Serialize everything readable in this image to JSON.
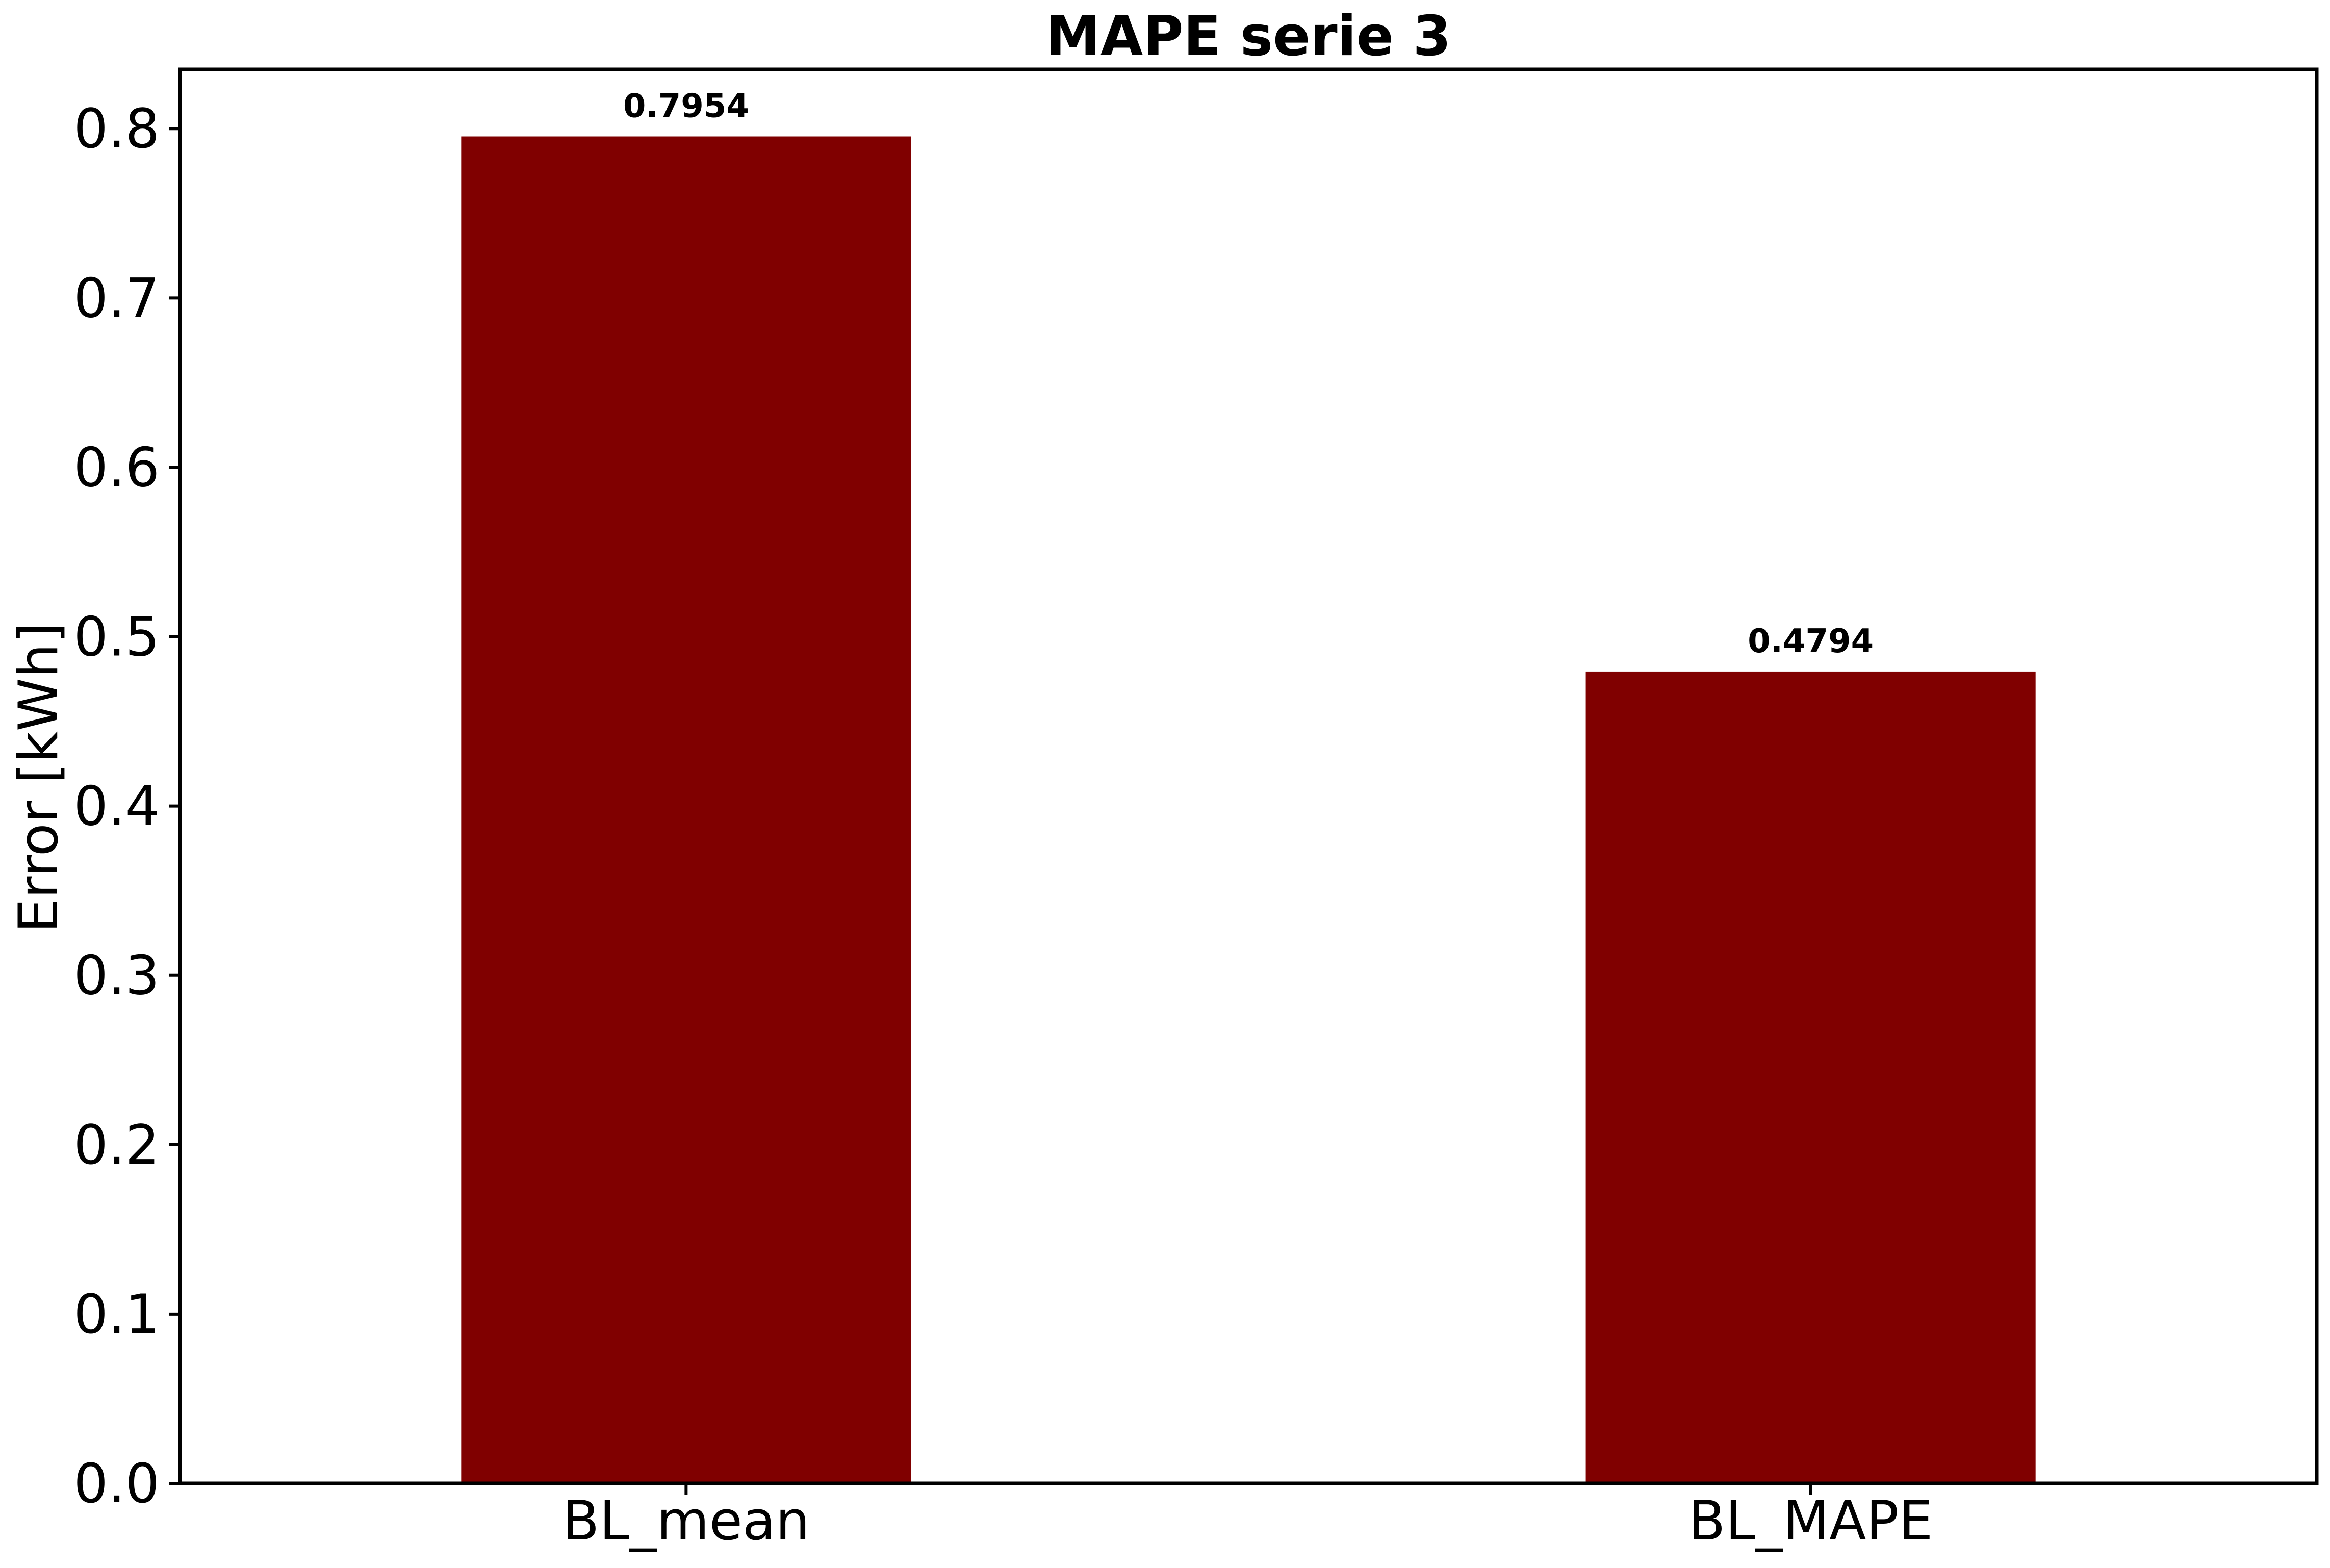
{
  "chart_data": {
    "type": "bar",
    "title": "MAPE serie 3",
    "xlabel": "",
    "ylabel": "Error [kWh]",
    "categories": [
      "BL_mean",
      "BL_MAPE"
    ],
    "values": [
      0.7954,
      0.4794
    ],
    "data_labels": [
      "0.7954",
      "0.4794"
    ],
    "ylim": [
      0,
      0.835
    ],
    "yticks": [
      0.0,
      0.1,
      0.2,
      0.3,
      0.4,
      0.5,
      0.6,
      0.7,
      0.8
    ],
    "ytick_labels": [
      "0.0",
      "0.1",
      "0.2",
      "0.3",
      "0.4",
      "0.5",
      "0.6",
      "0.7",
      "0.8"
    ],
    "bar_color": "#800000",
    "grid": false,
    "legend": "none"
  }
}
